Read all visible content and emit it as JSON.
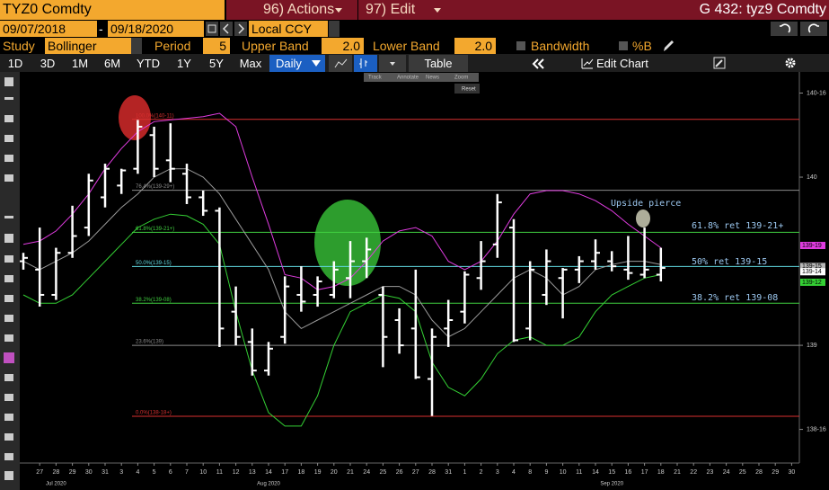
{
  "header": {
    "ticker": "TYZ0 Comdty",
    "actions": "96) Actions",
    "edit": "97) Edit",
    "security": "G 432: tyz9 Comdty"
  },
  "range": {
    "start": "09/07/2018",
    "separator": "-",
    "end": "09/18/2020",
    "currency": "Local CCY"
  },
  "study": {
    "label": "Study",
    "name": "Bollinger",
    "period_label": "Period",
    "period": "5",
    "upper_label": "Upper Band",
    "upper": "2.0",
    "lower_label": "Lower Band",
    "lower": "2.0",
    "bandwidth": "Bandwidth",
    "pctb": "%B"
  },
  "toolbar": {
    "periods": [
      "1D",
      "3D",
      "1M",
      "6M",
      "YTD",
      "1Y",
      "5Y",
      "Max"
    ],
    "frequency": "Daily",
    "table": "Table",
    "edit_chart": "Edit Chart"
  },
  "mini_toolbar": {
    "buttons": [
      "Track",
      "Annotate",
      "News",
      "Zoom"
    ],
    "reset": "Reset"
  },
  "chart_data": {
    "type": "ohlc",
    "categories": [
      null,
      "27",
      "28",
      "29",
      "30",
      "31",
      "3",
      "4",
      "5",
      "6",
      "7",
      "10",
      "11",
      "12",
      "13",
      "14",
      "17",
      "18",
      "19",
      "20",
      "21",
      "24",
      "25",
      "26",
      "27",
      "28",
      "31",
      "1",
      "2",
      "3",
      "4",
      "8",
      "9",
      "10",
      "11",
      "14",
      "15",
      "16",
      "17",
      "18",
      "21",
      "22",
      "23",
      "24",
      "25",
      "28",
      "29",
      "30"
    ],
    "month_labels": [
      null,
      null,
      "Jul 2020",
      null,
      null,
      null,
      null,
      null,
      null,
      null,
      null,
      null,
      null,
      null,
      null,
      "Aug 2020",
      null,
      null,
      null,
      null,
      null,
      null,
      null,
      null,
      null,
      null,
      null,
      null,
      null,
      null,
      null,
      null,
      null,
      null,
      null,
      null,
      "Sep 2020",
      null,
      null,
      null,
      null,
      null,
      null,
      null,
      null,
      null,
      null,
      null
    ],
    "color": "#ffffff",
    "open": [
      139.5,
      139.45,
      139.3,
      139.55,
      139.7,
      139.88,
      139.95,
      140.05,
      140.25,
      140.1,
      140.02,
      139.88,
      139.8,
      139.2,
      139.02,
      138.85,
      139.05,
      139.3,
      139.3,
      139.3,
      139.4,
      139.5,
      139.3,
      139.15,
      139.1,
      138.8,
      139.1,
      139.2,
      139.4,
      139.6,
      139.7,
      139.1,
      139.3,
      139.4,
      139.45,
      139.5,
      139.5,
      139.45,
      139.42,
      139.42,
      null,
      null,
      null,
      null,
      null,
      null,
      null,
      null
    ],
    "high": [
      139.55,
      139.7,
      139.58,
      139.83,
      140.02,
      140.08,
      140.05,
      140.34,
      140.3,
      140.32,
      140.08,
      139.92,
      139.82,
      139.35,
      139.1,
      139.02,
      139.41,
      139.47,
      139.41,
      139.5,
      139.62,
      139.64,
      139.35,
      139.22,
      139.45,
      139.1,
      139.27,
      139.44,
      139.62,
      139.9,
      139.75,
      139.5,
      139.57,
      139.46,
      139.53,
      139.63,
      139.56,
      139.65,
      139.7,
      139.58,
      null,
      null,
      null,
      null,
      null,
      null,
      null,
      null
    ],
    "low": [
      139.45,
      139.23,
      139.27,
      139.52,
      139.65,
      139.82,
      139.9,
      140.02,
      140.0,
      139.97,
      139.84,
      139.77,
      138.99,
      139.0,
      138.82,
      138.82,
      139.01,
      139.2,
      139.23,
      139.28,
      139.28,
      139.4,
      138.87,
      138.95,
      138.8,
      138.58,
      138.99,
      139.13,
      139.33,
      139.52,
      139.02,
      139.03,
      139.24,
      139.16,
      139.37,
      139.45,
      139.44,
      139.39,
      139.4,
      139.38,
      null,
      null,
      null,
      null,
      null,
      null,
      null,
      null
    ],
    "close": [
      139.52,
      139.3,
      139.55,
      139.65,
      139.98,
      140.05,
      140.04,
      140.3,
      140.05,
      140.05,
      139.88,
      139.8,
      139.1,
      139.05,
      138.85,
      138.98,
      139.35,
      139.26,
      139.38,
      139.45,
      139.5,
      139.57,
      139.05,
      139.0,
      138.81,
      139.05,
      139.15,
      139.42,
      139.5,
      139.85,
      139.03,
      139.45,
      139.5,
      139.45,
      139.5,
      139.55,
      139.47,
      139.43,
      139.45,
      139.46,
      null,
      null,
      null,
      null,
      null,
      null,
      null,
      null
    ],
    "bands": {
      "upper": {
        "color": "#e03ce0",
        "values": [
          139.6,
          139.62,
          139.68,
          139.78,
          139.9,
          140.05,
          140.17,
          140.27,
          140.33,
          140.34,
          140.35,
          140.36,
          140.38,
          140.3,
          140.0,
          139.72,
          139.42,
          139.4,
          139.33,
          139.35,
          139.4,
          139.5,
          139.62,
          139.68,
          139.7,
          139.65,
          139.5,
          139.45,
          139.5,
          139.62,
          139.78,
          139.9,
          139.92,
          139.92,
          139.9,
          139.86,
          139.8,
          139.72,
          139.65,
          139.58,
          null,
          null,
          null,
          null,
          null,
          null,
          null,
          null
        ]
      },
      "middle": {
        "color": "#9a9a9a",
        "values": [
          139.5,
          139.45,
          139.5,
          139.55,
          139.62,
          139.72,
          139.82,
          139.9,
          140.0,
          140.05,
          140.05,
          140.0,
          139.9,
          139.75,
          139.6,
          139.45,
          139.2,
          139.1,
          139.15,
          139.2,
          139.25,
          139.3,
          139.35,
          139.35,
          139.3,
          139.15,
          139.05,
          139.1,
          139.2,
          139.3,
          139.4,
          139.45,
          139.4,
          139.3,
          139.35,
          139.45,
          139.48,
          139.5,
          139.5,
          139.48,
          null,
          null,
          null,
          null,
          null,
          null,
          null,
          null
        ]
      },
      "lower": {
        "color": "#34d034",
        "values": [
          139.3,
          139.25,
          139.25,
          139.3,
          139.4,
          139.5,
          139.6,
          139.7,
          139.75,
          139.78,
          139.77,
          139.72,
          139.6,
          139.2,
          138.85,
          138.6,
          138.52,
          138.52,
          138.7,
          139.0,
          139.2,
          139.25,
          139.3,
          139.28,
          139.2,
          138.9,
          138.75,
          138.7,
          138.8,
          138.95,
          139.03,
          139.05,
          139.0,
          139.0,
          139.05,
          139.2,
          139.3,
          139.35,
          139.4,
          139.42,
          null,
          null,
          null,
          null,
          null,
          null,
          null,
          null
        ]
      }
    },
    "fib_levels": [
      {
        "value": 140.34375,
        "label": "100.0%(140-11)",
        "color": "#d83030"
      },
      {
        "value": 139.921875,
        "label": "76.4%(139-29+)",
        "color": "#8a8a8a"
      },
      {
        "value": 139.671875,
        "label": "61.8%(139-21+)",
        "color": "#40d040"
      },
      {
        "value": 139.46875,
        "label": "50.0%(139-15)",
        "color": "#60d8e0"
      },
      {
        "value": 139.25,
        "label": "38.2%(139-08)",
        "color": "#40d040"
      },
      {
        "value": 139,
        "label": "23.6%(139)",
        "color": "#8a8a8a"
      },
      {
        "value": 138.578125,
        "label": "0.0%(138-18+)",
        "color": "#d83030"
      }
    ],
    "annotations": [
      "Upside pierce",
      "61.8% ret 139-21+",
      "50% ret 139-15",
      "38.2% ret 139-08"
    ],
    "annotation_color": "#9cc8f0",
    "price_tags": [
      {
        "value": 139.59375,
        "label": "139-19",
        "color": "#e03ce0"
      },
      {
        "value": 139.46875,
        "label": "139-15",
        "color": "#b8b8b8"
      },
      {
        "value": 139.4375,
        "label": "139-14",
        "color": "#ffffff"
      },
      {
        "value": 139.375,
        "label": "139-12",
        "color": "#34d034"
      }
    ],
    "ylim": [
      138.3,
      140.615
    ],
    "yticks": [
      {
        "value": 140.5,
        "label": "140-16"
      },
      140,
      139,
      {
        "value": 138.5,
        "label": "138-16"
      }
    ],
    "grid": false
  }
}
